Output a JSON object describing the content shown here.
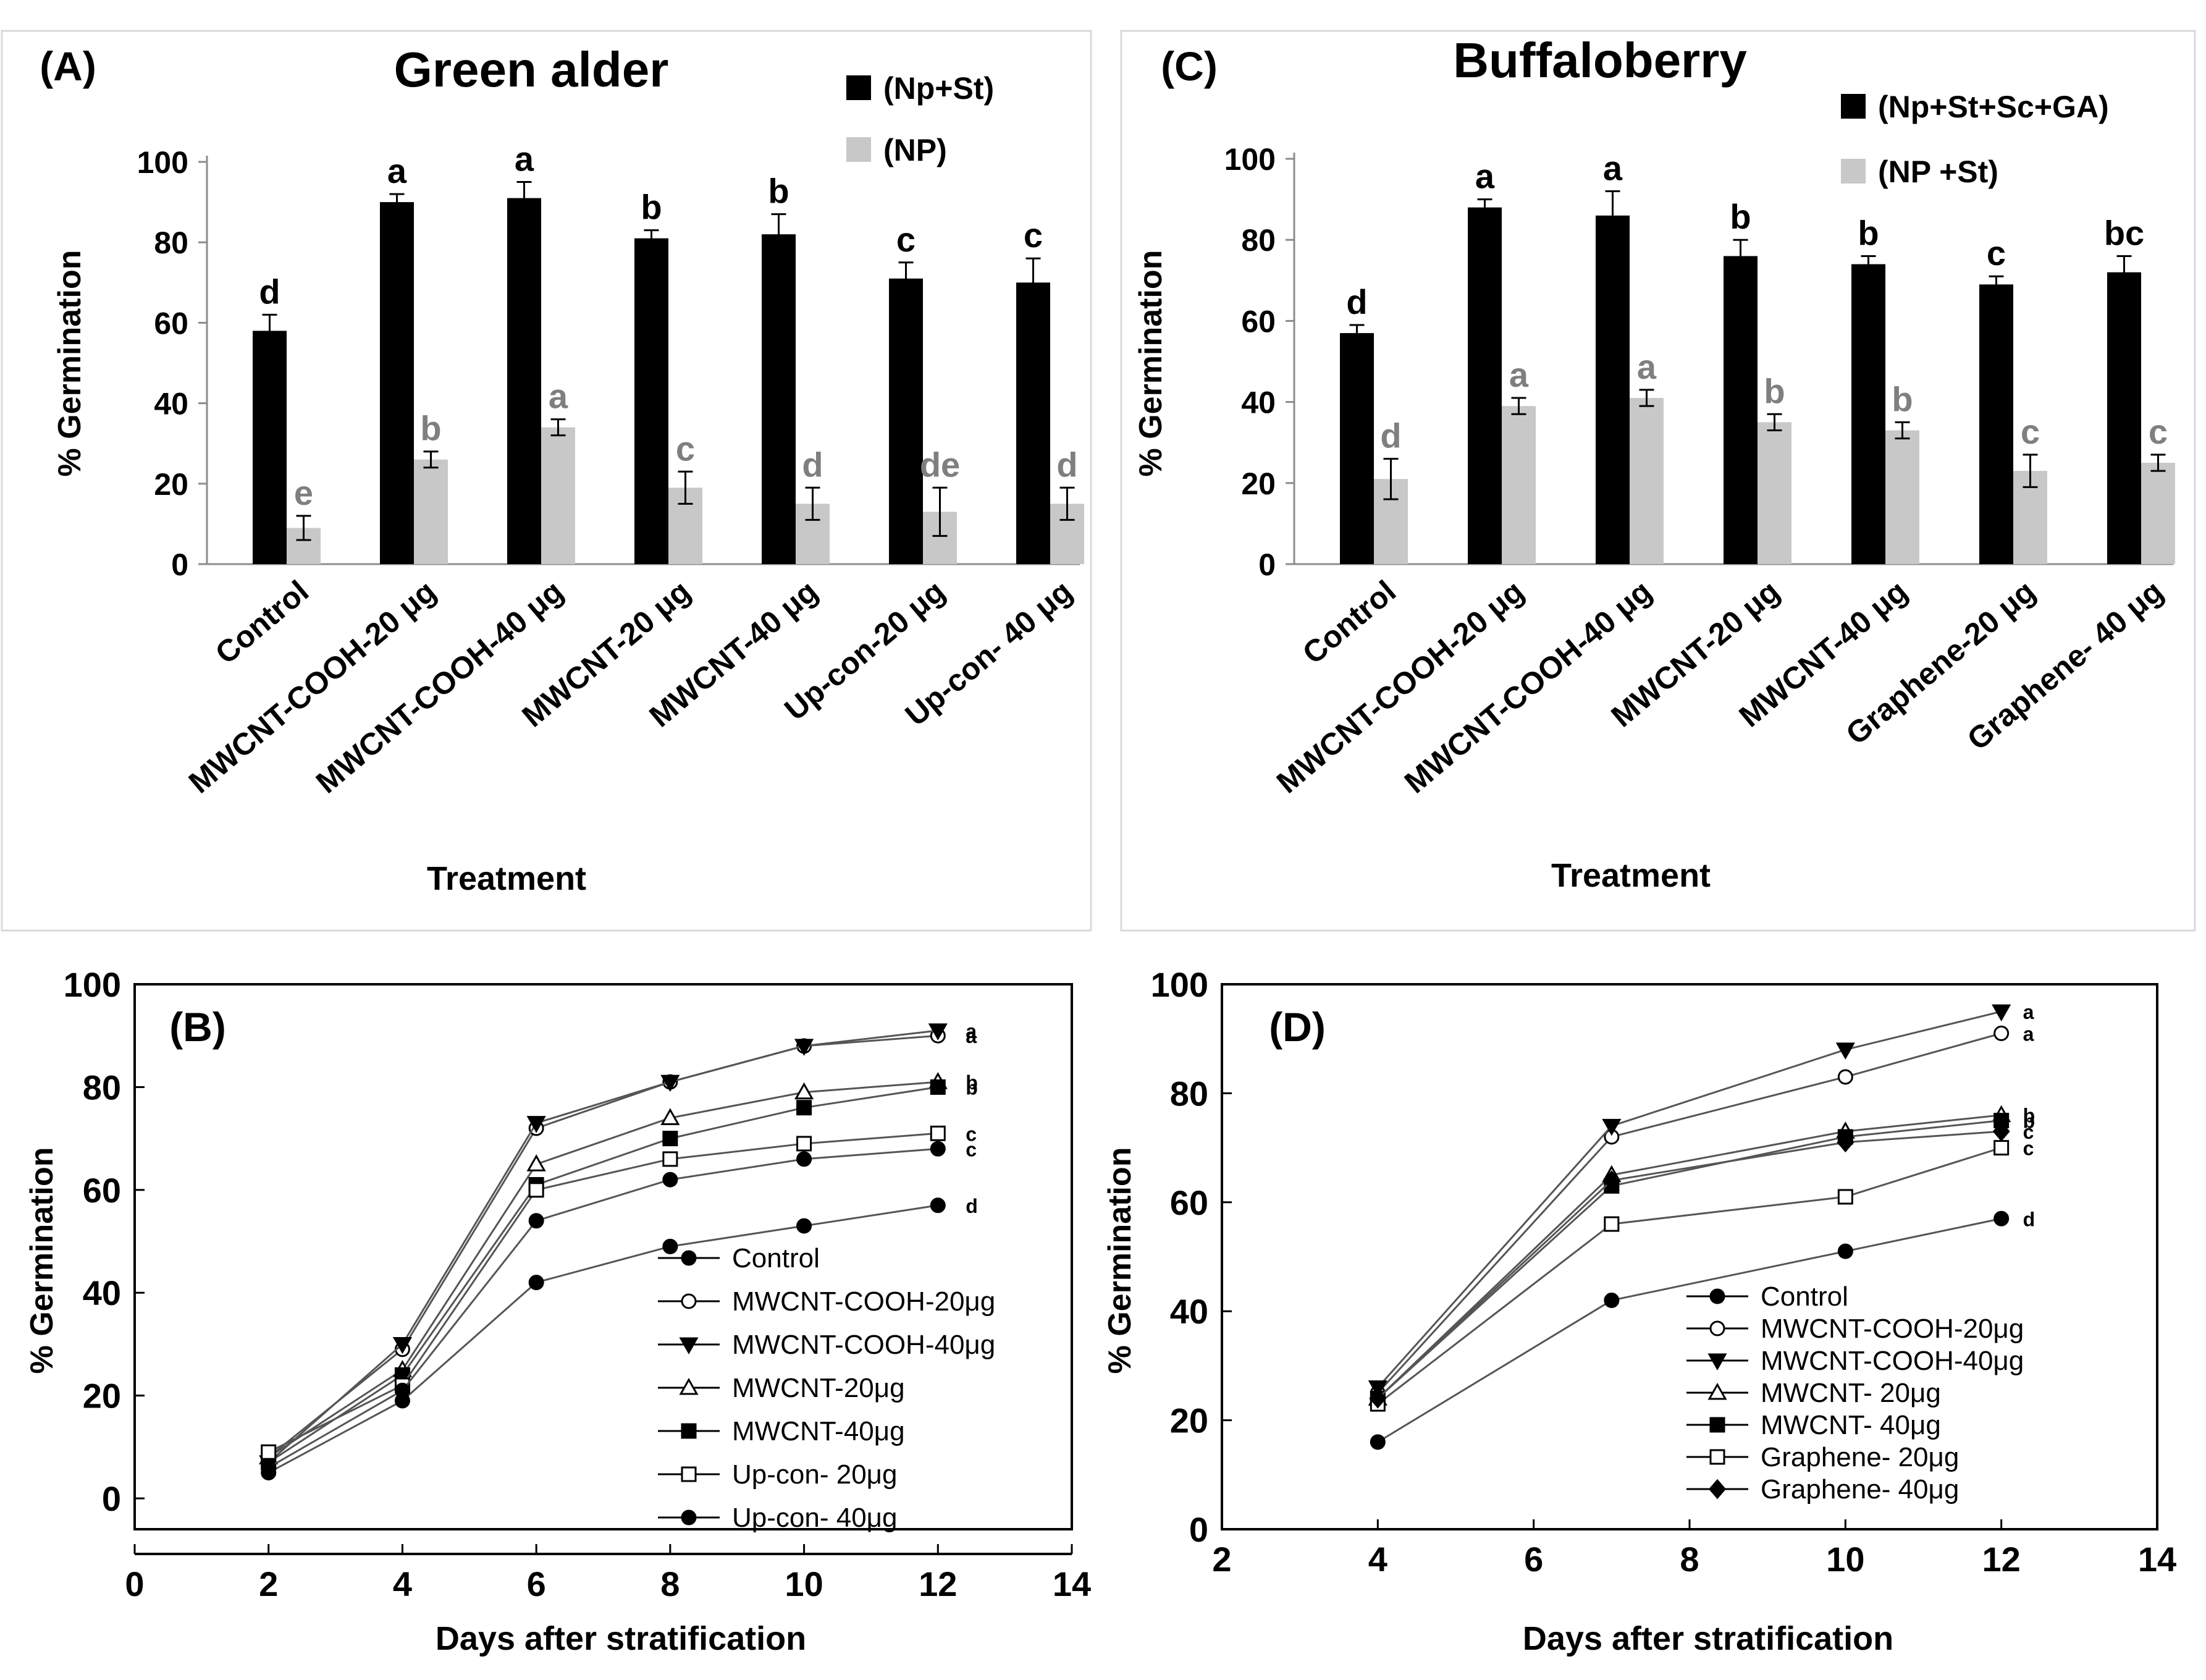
{
  "chart_data": [
    {
      "panel": "(A)",
      "type": "bar",
      "title": "Green alder",
      "ylabel": "% Germination",
      "xlabel": "Treatment",
      "ylim": [
        0,
        100
      ],
      "yticks": [
        0,
        20,
        40,
        60,
        80,
        100
      ],
      "categories": [
        "Control",
        "MWCNT-COOH-20 μg",
        "MWCNT-COOH-40 μg",
        "MWCNT-20 μg",
        "MWCNT-40 μg",
        "Up-con-20 μg",
        "Up-con- 40 μg"
      ],
      "series": [
        {
          "name": "(Np+St)",
          "color": "#000000",
          "values": [
            58,
            90,
            91,
            81,
            82,
            71,
            70
          ],
          "errors": [
            4,
            2,
            4,
            2,
            5,
            4,
            6
          ],
          "letters": [
            "d",
            "a",
            "a",
            "b",
            "b",
            "c",
            "c"
          ],
          "letter_color": "#000000"
        },
        {
          "name": "(NP)",
          "color": "#c8c8c8",
          "values": [
            9,
            26,
            34,
            19,
            15,
            13,
            15
          ],
          "errors": [
            3,
            2,
            2,
            4,
            4,
            6,
            4
          ],
          "letters": [
            "e",
            "b",
            "a",
            "c",
            "d",
            "de",
            "d"
          ],
          "letter_color": "#7f7f7f"
        }
      ]
    },
    {
      "panel": "(C)",
      "type": "bar",
      "title": "Buffaloberry",
      "ylabel": "% Germination",
      "xlabel": "Treatment",
      "ylim": [
        0,
        100
      ],
      "yticks": [
        0,
        20,
        40,
        60,
        80,
        100
      ],
      "categories": [
        "Control",
        "MWCNT-COOH-20 μg",
        "MWCNT-COOH-40 μg",
        "MWCNT-20 μg",
        "MWCNT-40 μg",
        "Graphene-20 μg",
        "Graphene- 40 μg"
      ],
      "series": [
        {
          "name": "(Np+St+Sc+GA)",
          "color": "#000000",
          "values": [
            57,
            88,
            86,
            76,
            74,
            69,
            72
          ],
          "errors": [
            2,
            2,
            6,
            4,
            2,
            2,
            4
          ],
          "letters": [
            "d",
            "a",
            "a",
            "b",
            "b",
            "c",
            "bc"
          ],
          "letter_color": "#000000"
        },
        {
          "name": "(NP +St)",
          "color": "#c8c8c8",
          "values": [
            21,
            39,
            41,
            35,
            33,
            23,
            25
          ],
          "errors": [
            5,
            2,
            2,
            2,
            2,
            4,
            2
          ],
          "letters": [
            "d",
            "a",
            "a",
            "b",
            "b",
            "c",
            "c"
          ],
          "letter_color": "#7f7f7f"
        }
      ]
    },
    {
      "panel": "(B)",
      "type": "line",
      "xlabel": "Days after stratification",
      "ylabel": "% Germination",
      "xlim": [
        0,
        14
      ],
      "ylim": [
        -6,
        100
      ],
      "xticks": [
        0,
        2,
        4,
        6,
        8,
        10,
        12,
        14
      ],
      "yticks": [
        0,
        20,
        40,
        60,
        80,
        100
      ],
      "x": [
        2,
        4,
        6,
        8,
        10,
        12
      ],
      "series": [
        {
          "name": "Control",
          "marker": "circle-filled",
          "color": "#000000",
          "values": [
            5,
            19,
            42,
            49,
            53,
            57
          ],
          "letter": "d"
        },
        {
          "name": "MWCNT-COOH-20μg",
          "marker": "circle-open",
          "color": "#000000",
          "values": [
            8,
            29,
            72,
            81,
            88,
            90
          ],
          "letter": "a"
        },
        {
          "name": "MWCNT-COOH-40μg",
          "marker": "triangle-down-filled",
          "color": "#000000",
          "values": [
            7,
            30,
            73,
            81,
            88,
            91
          ],
          "letter": "a"
        },
        {
          "name": "MWCNT-20μg",
          "marker": "triangle-up-open",
          "color": "#000000",
          "values": [
            8,
            25,
            65,
            74,
            79,
            81
          ],
          "letter": "b"
        },
        {
          "name": "MWCNT-40μg",
          "marker": "square-filled",
          "color": "#000000",
          "values": [
            7,
            24,
            61,
            70,
            76,
            80
          ],
          "letter": "b"
        },
        {
          "name": "Up-con- 20μg",
          "marker": "square-open",
          "color": "#000000",
          "values": [
            9,
            22,
            60,
            66,
            69,
            71
          ],
          "letter": "c"
        },
        {
          "name": "Up-con- 40μg",
          "marker": "circle-filled",
          "color": "#000000",
          "values": [
            6,
            21,
            54,
            62,
            66,
            68
          ],
          "letter": "c"
        }
      ]
    },
    {
      "panel": "(D)",
      "type": "line",
      "xlabel": "Days after stratification",
      "ylabel": "% Germination",
      "xlim": [
        2,
        14
      ],
      "ylim": [
        0,
        100
      ],
      "xticks": [
        2,
        4,
        6,
        8,
        10,
        12,
        14
      ],
      "yticks": [
        0,
        20,
        40,
        60,
        80,
        100
      ],
      "x": [
        4,
        7,
        10,
        12
      ],
      "series": [
        {
          "name": "Control",
          "marker": "circle-filled",
          "color": "#000000",
          "values": [
            16,
            42,
            51,
            57
          ],
          "letter": "d"
        },
        {
          "name": "MWCNT-COOH-20μg",
          "marker": "circle-open",
          "color": "#000000",
          "values": [
            25,
            72,
            83,
            91
          ],
          "letter": "a"
        },
        {
          "name": "MWCNT-COOH-40μg",
          "marker": "triangle-down-filled",
          "color": "#000000",
          "values": [
            26,
            74,
            88,
            95
          ],
          "letter": "a"
        },
        {
          "name": "MWCNT- 20μg",
          "marker": "triangle-up-open",
          "color": "#000000",
          "values": [
            24,
            65,
            73,
            76
          ],
          "letter": "b"
        },
        {
          "name": "MWCNT- 40μg",
          "marker": "square-filled",
          "color": "#000000",
          "values": [
            24,
            63,
            72,
            75
          ],
          "letter": "b"
        },
        {
          "name": "Graphene- 20μg",
          "marker": "square-open",
          "color": "#000000",
          "values": [
            23,
            56,
            61,
            70
          ],
          "letter": "c"
        },
        {
          "name": "Graphene- 40μg",
          "marker": "diamond-filled",
          "color": "#000000",
          "values": [
            24,
            64,
            71,
            73
          ],
          "letter": "c"
        }
      ]
    }
  ]
}
